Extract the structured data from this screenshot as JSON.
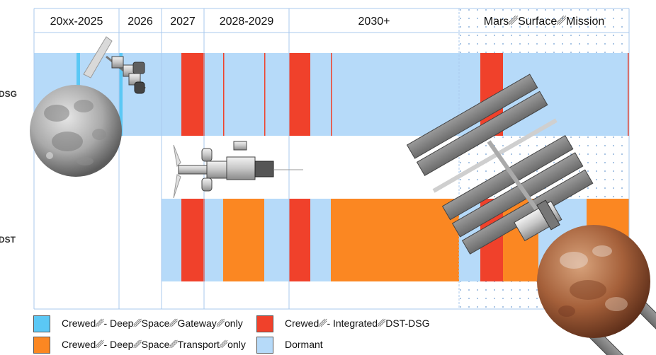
{
  "headers": [
    "20xx-2025",
    "2026",
    "2027",
    "2028-2029",
    "2030+",
    "Mars␥Surface␥Mission"
  ],
  "rows": [
    "DSG",
    "DST"
  ],
  "colors": {
    "gateway": "#5bc8f5",
    "integrated": "#f0412b",
    "transport": "#fb8722",
    "dormant": "#b6daf9",
    "grid": "#a9c9ee"
  },
  "legend": [
    {
      "label": "Crewed␥- Deep␥Space␥Gateway␥only",
      "color": "#5bc8f5"
    },
    {
      "label": "Crewed␥- Integrated␥DST-DSG",
      "color": "#f0412b"
    },
    {
      "label": "Crewed␥- Deep␥Space␥Transport␥only",
      "color": "#fb8722"
    },
    {
      "label": "Dormant",
      "color": "#b6daf9"
    }
  ]
}
